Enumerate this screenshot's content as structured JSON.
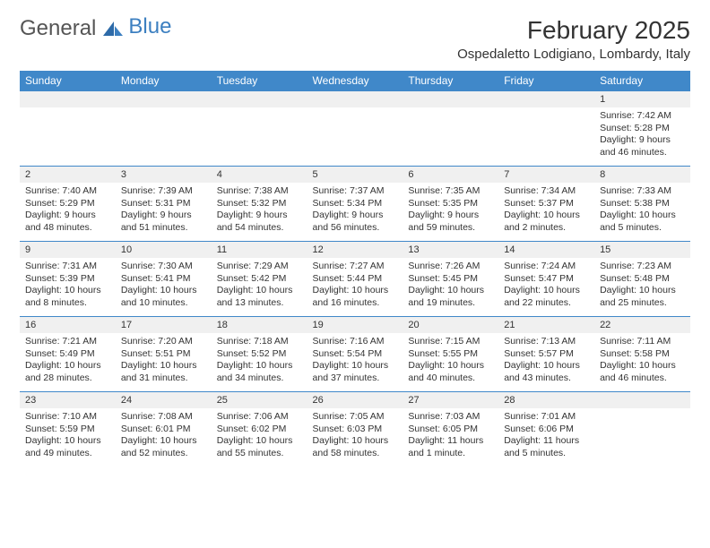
{
  "logo": {
    "text1": "General",
    "text2": "Blue"
  },
  "title": "February 2025",
  "location": "Ospedaletto Lodigiano, Lombardy, Italy",
  "colors": {
    "header_bg": "#4088c9",
    "header_text": "#ffffff",
    "day_number_bg": "#f0f0f0",
    "row_divider": "#4088c9",
    "body_text": "#333333",
    "logo_gray": "#555555",
    "logo_blue": "#3c7fc0"
  },
  "weekdays": [
    "Sunday",
    "Monday",
    "Tuesday",
    "Wednesday",
    "Thursday",
    "Friday",
    "Saturday"
  ],
  "weeks": [
    [
      null,
      null,
      null,
      null,
      null,
      null,
      {
        "n": "1",
        "sunrise": "Sunrise: 7:42 AM",
        "sunset": "Sunset: 5:28 PM",
        "daylight": "Daylight: 9 hours and 46 minutes."
      }
    ],
    [
      {
        "n": "2",
        "sunrise": "Sunrise: 7:40 AM",
        "sunset": "Sunset: 5:29 PM",
        "daylight": "Daylight: 9 hours and 48 minutes."
      },
      {
        "n": "3",
        "sunrise": "Sunrise: 7:39 AM",
        "sunset": "Sunset: 5:31 PM",
        "daylight": "Daylight: 9 hours and 51 minutes."
      },
      {
        "n": "4",
        "sunrise": "Sunrise: 7:38 AM",
        "sunset": "Sunset: 5:32 PM",
        "daylight": "Daylight: 9 hours and 54 minutes."
      },
      {
        "n": "5",
        "sunrise": "Sunrise: 7:37 AM",
        "sunset": "Sunset: 5:34 PM",
        "daylight": "Daylight: 9 hours and 56 minutes."
      },
      {
        "n": "6",
        "sunrise": "Sunrise: 7:35 AM",
        "sunset": "Sunset: 5:35 PM",
        "daylight": "Daylight: 9 hours and 59 minutes."
      },
      {
        "n": "7",
        "sunrise": "Sunrise: 7:34 AM",
        "sunset": "Sunset: 5:37 PM",
        "daylight": "Daylight: 10 hours and 2 minutes."
      },
      {
        "n": "8",
        "sunrise": "Sunrise: 7:33 AM",
        "sunset": "Sunset: 5:38 PM",
        "daylight": "Daylight: 10 hours and 5 minutes."
      }
    ],
    [
      {
        "n": "9",
        "sunrise": "Sunrise: 7:31 AM",
        "sunset": "Sunset: 5:39 PM",
        "daylight": "Daylight: 10 hours and 8 minutes."
      },
      {
        "n": "10",
        "sunrise": "Sunrise: 7:30 AM",
        "sunset": "Sunset: 5:41 PM",
        "daylight": "Daylight: 10 hours and 10 minutes."
      },
      {
        "n": "11",
        "sunrise": "Sunrise: 7:29 AM",
        "sunset": "Sunset: 5:42 PM",
        "daylight": "Daylight: 10 hours and 13 minutes."
      },
      {
        "n": "12",
        "sunrise": "Sunrise: 7:27 AM",
        "sunset": "Sunset: 5:44 PM",
        "daylight": "Daylight: 10 hours and 16 minutes."
      },
      {
        "n": "13",
        "sunrise": "Sunrise: 7:26 AM",
        "sunset": "Sunset: 5:45 PM",
        "daylight": "Daylight: 10 hours and 19 minutes."
      },
      {
        "n": "14",
        "sunrise": "Sunrise: 7:24 AM",
        "sunset": "Sunset: 5:47 PM",
        "daylight": "Daylight: 10 hours and 22 minutes."
      },
      {
        "n": "15",
        "sunrise": "Sunrise: 7:23 AM",
        "sunset": "Sunset: 5:48 PM",
        "daylight": "Daylight: 10 hours and 25 minutes."
      }
    ],
    [
      {
        "n": "16",
        "sunrise": "Sunrise: 7:21 AM",
        "sunset": "Sunset: 5:49 PM",
        "daylight": "Daylight: 10 hours and 28 minutes."
      },
      {
        "n": "17",
        "sunrise": "Sunrise: 7:20 AM",
        "sunset": "Sunset: 5:51 PM",
        "daylight": "Daylight: 10 hours and 31 minutes."
      },
      {
        "n": "18",
        "sunrise": "Sunrise: 7:18 AM",
        "sunset": "Sunset: 5:52 PM",
        "daylight": "Daylight: 10 hours and 34 minutes."
      },
      {
        "n": "19",
        "sunrise": "Sunrise: 7:16 AM",
        "sunset": "Sunset: 5:54 PM",
        "daylight": "Daylight: 10 hours and 37 minutes."
      },
      {
        "n": "20",
        "sunrise": "Sunrise: 7:15 AM",
        "sunset": "Sunset: 5:55 PM",
        "daylight": "Daylight: 10 hours and 40 minutes."
      },
      {
        "n": "21",
        "sunrise": "Sunrise: 7:13 AM",
        "sunset": "Sunset: 5:57 PM",
        "daylight": "Daylight: 10 hours and 43 minutes."
      },
      {
        "n": "22",
        "sunrise": "Sunrise: 7:11 AM",
        "sunset": "Sunset: 5:58 PM",
        "daylight": "Daylight: 10 hours and 46 minutes."
      }
    ],
    [
      {
        "n": "23",
        "sunrise": "Sunrise: 7:10 AM",
        "sunset": "Sunset: 5:59 PM",
        "daylight": "Daylight: 10 hours and 49 minutes."
      },
      {
        "n": "24",
        "sunrise": "Sunrise: 7:08 AM",
        "sunset": "Sunset: 6:01 PM",
        "daylight": "Daylight: 10 hours and 52 minutes."
      },
      {
        "n": "25",
        "sunrise": "Sunrise: 7:06 AM",
        "sunset": "Sunset: 6:02 PM",
        "daylight": "Daylight: 10 hours and 55 minutes."
      },
      {
        "n": "26",
        "sunrise": "Sunrise: 7:05 AM",
        "sunset": "Sunset: 6:03 PM",
        "daylight": "Daylight: 10 hours and 58 minutes."
      },
      {
        "n": "27",
        "sunrise": "Sunrise: 7:03 AM",
        "sunset": "Sunset: 6:05 PM",
        "daylight": "Daylight: 11 hours and 1 minute."
      },
      {
        "n": "28",
        "sunrise": "Sunrise: 7:01 AM",
        "sunset": "Sunset: 6:06 PM",
        "daylight": "Daylight: 11 hours and 5 minutes."
      },
      null
    ]
  ]
}
